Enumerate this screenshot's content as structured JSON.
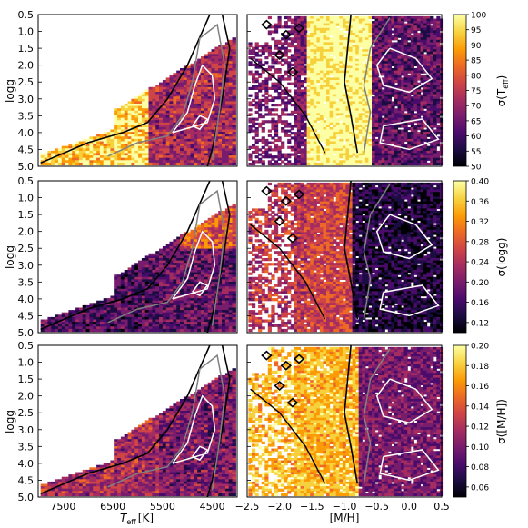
{
  "chart_data": [
    {
      "type": "heatmap",
      "panel": "top-left",
      "x": "Teff",
      "y": "logg",
      "xlim": [
        8000,
        4000
      ],
      "ylim": [
        5.0,
        0.5
      ],
      "ylabel": "logg",
      "colorbar": "sigma_teff"
    },
    {
      "type": "heatmap",
      "panel": "top-right",
      "x": "[M/H]",
      "y": "logg",
      "xlim": [
        -2.5,
        0.5
      ],
      "ylim": [
        5.0,
        0.5
      ],
      "colorbar": "sigma_teff"
    },
    {
      "type": "heatmap",
      "panel": "middle-left",
      "x": "Teff",
      "y": "logg",
      "xlim": [
        8000,
        4000
      ],
      "ylim": [
        5.0,
        0.5
      ],
      "ylabel": "logg",
      "colorbar": "sigma_logg"
    },
    {
      "type": "heatmap",
      "panel": "middle-right",
      "x": "[M/H]",
      "y": "logg",
      "xlim": [
        -2.5,
        0.5
      ],
      "ylim": [
        5.0,
        0.5
      ],
      "colorbar": "sigma_logg"
    },
    {
      "type": "heatmap",
      "panel": "bottom-left",
      "x": "Teff",
      "y": "logg",
      "xlim": [
        8000,
        4000
      ],
      "ylim": [
        5.0,
        0.5
      ],
      "ylabel": "logg",
      "colorbar": "sigma_mh"
    },
    {
      "type": "heatmap",
      "panel": "bottom-right",
      "x": "[M/H]",
      "y": "logg",
      "xlim": [
        -2.5,
        0.5
      ],
      "ylim": [
        5.0,
        0.5
      ],
      "colorbar": "sigma_mh"
    }
  ],
  "axes": {
    "logg_ticks": [
      "0.5",
      "1.0",
      "1.5",
      "2.0",
      "2.5",
      "3.0",
      "3.5",
      "4.0",
      "4.5",
      "5.0"
    ],
    "logg_values": [
      0.5,
      1.0,
      1.5,
      2.0,
      2.5,
      3.0,
      3.5,
      4.0,
      4.5,
      5.0
    ],
    "teff_ticks": [
      "7500",
      "6500",
      "5500",
      "4500"
    ],
    "teff_values": [
      7500,
      6500,
      5500,
      4500
    ],
    "mh_ticks": [
      "−2.5",
      "−2.0",
      "−1.5",
      "−1.0",
      "−0.5",
      "0.0",
      "0.5"
    ],
    "mh_values": [
      -2.5,
      -2.0,
      -1.5,
      -1.0,
      -0.5,
      0.0,
      0.5
    ],
    "ylabel": "logg",
    "xlabel_left": "T",
    "xlabel_left_sub": "eff",
    "xlabel_left_unit": "[K]",
    "xlabel_right": "[M/H]"
  },
  "colorbars": {
    "sigma_teff": {
      "label": "σ(T",
      "label_sub": "eff",
      "label_end": ")",
      "ticks": [
        "100",
        "95",
        "90",
        "85",
        "80",
        "75",
        "70",
        "65",
        "60",
        "55",
        "50"
      ],
      "values": [
        100,
        95,
        90,
        85,
        80,
        75,
        70,
        65,
        60,
        55,
        50
      ],
      "range": [
        50,
        100
      ]
    },
    "sigma_logg": {
      "label": "σ(logg)",
      "ticks": [
        "0.40",
        "0.36",
        "0.32",
        "0.28",
        "0.24",
        "0.20",
        "0.16",
        "0.12"
      ],
      "values": [
        0.4,
        0.36,
        0.32,
        0.28,
        0.24,
        0.2,
        0.16,
        0.12
      ],
      "range": [
        0.1,
        0.4
      ]
    },
    "sigma_mh": {
      "label": "σ([M/H])",
      "ticks": [
        "0.20",
        "0.18",
        "0.16",
        "0.14",
        "0.12",
        "0.10",
        "0.08",
        "0.06"
      ],
      "values": [
        0.2,
        0.18,
        0.16,
        0.14,
        0.12,
        0.1,
        0.08,
        0.06
      ],
      "range": [
        0.05,
        0.2
      ]
    }
  },
  "colors": {
    "cmap": [
      "#000004",
      "#1b0c41",
      "#4a0c6b",
      "#781c6d",
      "#a52c60",
      "#cf4446",
      "#ed6925",
      "#fb9b06",
      "#f7d13d",
      "#fcffa4"
    ],
    "contour_outer": "#000000",
    "contour_middle": "#808080",
    "contour_inner": "#ffffff"
  }
}
